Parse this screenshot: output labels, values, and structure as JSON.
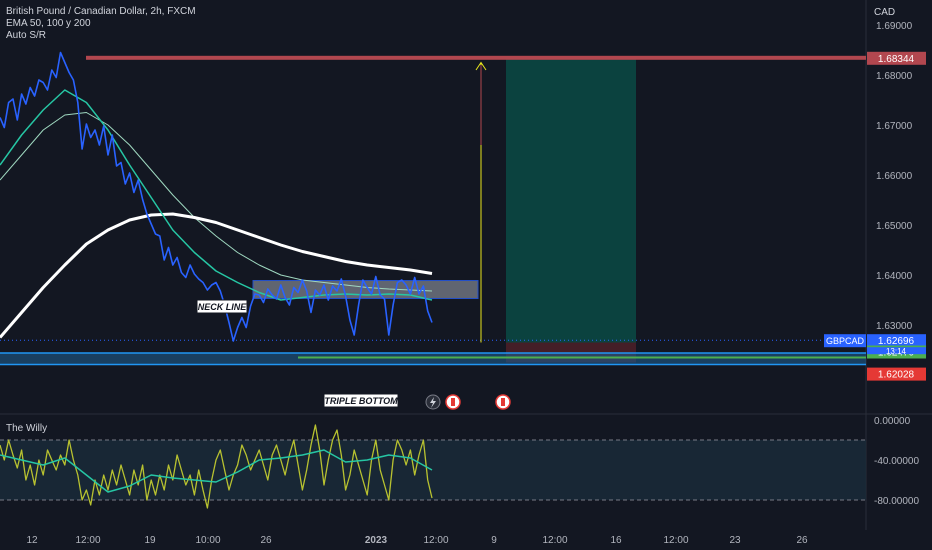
{
  "legend": {
    "title": "British Pound / Canadian Dollar, 2h, FXCM",
    "indicator1": "EMA 50, 100 y 200",
    "indicator2": "Auto S/R"
  },
  "currency": "CAD",
  "oscillator": {
    "title": "The Willy"
  },
  "labels": {
    "neck_line": "NECK LINE",
    "triple_bottom": "TRIPLE BOTTOM",
    "symbol": "GBPCAD",
    "countdown": "13:14"
  },
  "colors": {
    "background": "#131722",
    "price": "#2962ff",
    "ema50": "#26c6a4",
    "ema100": "#9fd8c0",
    "ema200": "#ffffff",
    "resistance": "#b2474f",
    "support": "#2196f3",
    "target_zone": "#0a4a44",
    "stop_zone": "#4a1f28",
    "oscillator": "#b8c230",
    "oscillator_avg": "#26c6a4",
    "arrow": "#e8e61c"
  },
  "chart_data": {
    "type": "line",
    "price_axis": {
      "ticks": [
        "1.69000",
        "1.68000",
        "1.67000",
        "1.66000",
        "1.65000",
        "1.64000",
        "1.63000"
      ],
      "ylim": [
        1.617,
        1.695
      ]
    },
    "time_axis": {
      "ticks": [
        "12",
        "12:00",
        "19",
        "10:00",
        "26",
        "2023",
        "12:00",
        "9",
        "12:00",
        "16",
        "12:00",
        "23",
        "26"
      ]
    },
    "price_badges": [
      {
        "label": "1.68344",
        "value": 1.68344,
        "color": "#b2474f"
      },
      {
        "label": "1.62696",
        "value": 1.62696,
        "color": "#2962ff"
      },
      {
        "label": "1.62470",
        "value": 1.6247,
        "color": "#4caf50"
      },
      {
        "label": "1.62028",
        "value": 1.62028,
        "color": "#e53935"
      }
    ],
    "levels": {
      "resistance": 1.68344,
      "neck_line": [
        1.6365,
        1.6385
      ],
      "support_zone": [
        1.6225,
        1.6242
      ]
    },
    "series": [
      {
        "name": "GBPCAD",
        "x": [
          0,
          2,
          4,
          6,
          8,
          10,
          12,
          14,
          16,
          18,
          20,
          22,
          24,
          26,
          28,
          30,
          32,
          34,
          36,
          38,
          40,
          42,
          44,
          46,
          48,
          50,
          52,
          54,
          56,
          58,
          60,
          62,
          64,
          66,
          68,
          70,
          72,
          74,
          76,
          78,
          80,
          82,
          84,
          86,
          88,
          90,
          92,
          94,
          96,
          98,
          100,
          102,
          104,
          106,
          108,
          110,
          112,
          114,
          116,
          118,
          120,
          122,
          124,
          126,
          128,
          130,
          132,
          134,
          136,
          138,
          140,
          142,
          144,
          146,
          148,
          150,
          152,
          154,
          156,
          158,
          160,
          162,
          164,
          166,
          168,
          170,
          172,
          174,
          176,
          178,
          180,
          182,
          184,
          186,
          188,
          190,
          192,
          194,
          196,
          198,
          200
        ],
        "values": [
          1.6715,
          1.6695,
          1.6745,
          1.6752,
          1.671,
          1.6762,
          1.6742,
          1.6775,
          1.6758,
          1.679,
          1.6785,
          1.677,
          1.681,
          1.6795,
          1.6845,
          1.6825,
          1.6805,
          1.679,
          1.6745,
          1.6652,
          1.6702,
          1.6675,
          1.669,
          1.666,
          1.6698,
          1.664,
          1.668,
          1.6618,
          1.6625,
          1.6582,
          1.6604,
          1.6565,
          1.659,
          1.6551,
          1.6522,
          1.6502,
          1.6482,
          1.6478,
          1.643,
          1.6455,
          1.642,
          1.6435,
          1.6405,
          1.6395,
          1.642,
          1.6402,
          1.6392,
          1.6385,
          1.637,
          1.638,
          1.6385,
          1.6368,
          1.634,
          1.6305,
          1.6268,
          1.6295,
          1.6315,
          1.6295,
          1.6338,
          1.6362,
          1.636,
          1.6345,
          1.6372,
          1.636,
          1.6352,
          1.638,
          1.6355,
          1.634,
          1.6375,
          1.6365,
          1.639,
          1.6368,
          1.6325,
          1.637,
          1.636,
          1.638,
          1.635,
          1.6378,
          1.6368,
          1.6392,
          1.6358,
          1.631,
          1.628,
          1.634,
          1.639,
          1.6375,
          1.6362,
          1.6397,
          1.636,
          1.6352,
          1.628,
          1.634,
          1.6385,
          1.639,
          1.638,
          1.6362,
          1.6395,
          1.6362,
          1.6378,
          1.6328,
          1.6305
        ]
      },
      {
        "name": "EMA 50",
        "x": [
          0,
          10,
          20,
          30,
          40,
          50,
          60,
          70,
          80,
          90,
          100,
          110,
          120,
          130,
          140,
          150,
          160,
          170,
          180,
          190,
          200
        ],
        "values": [
          1.662,
          1.668,
          1.673,
          1.677,
          1.6745,
          1.669,
          1.662,
          1.6555,
          1.649,
          1.6445,
          1.6408,
          1.6385,
          1.6365,
          1.635,
          1.6355,
          1.636,
          1.6362,
          1.636,
          1.6362,
          1.636,
          1.635
        ]
      },
      {
        "name": "EMA 100",
        "x": [
          0,
          10,
          20,
          30,
          40,
          50,
          60,
          70,
          80,
          90,
          100,
          110,
          120,
          130,
          140,
          150,
          160,
          170,
          180,
          190,
          200
        ],
        "values": [
          1.659,
          1.664,
          1.669,
          1.672,
          1.6725,
          1.67,
          1.666,
          1.661,
          1.656,
          1.6515,
          1.6478,
          1.6445,
          1.642,
          1.64,
          1.639,
          1.6385,
          1.638,
          1.6375,
          1.6372,
          1.637,
          1.6368
        ]
      },
      {
        "name": "EMA 200",
        "x": [
          0,
          10,
          20,
          30,
          40,
          50,
          60,
          70,
          80,
          90,
          100,
          110,
          120,
          130,
          140,
          150,
          160,
          170,
          180,
          190,
          200
        ],
        "values": [
          1.6275,
          1.6325,
          1.6375,
          1.642,
          1.6462,
          1.649,
          1.651,
          1.652,
          1.6522,
          1.6515,
          1.6505,
          1.649,
          1.6475,
          1.646,
          1.6447,
          1.6437,
          1.6427,
          1.642,
          1.6415,
          1.641,
          1.6403
        ]
      }
    ],
    "oscillator": {
      "title": "The Willy",
      "ticks": [
        "0.00000",
        "-40.00000",
        "-80.00000"
      ],
      "ylim": [
        -100,
        6
      ],
      "bands": [
        -20,
        -80
      ],
      "series": [
        {
          "name": "The Willy",
          "x": [
            0,
            2,
            4,
            6,
            8,
            10,
            12,
            14,
            16,
            18,
            20,
            22,
            24,
            26,
            28,
            30,
            32,
            34,
            36,
            38,
            40,
            42,
            44,
            46,
            48,
            50,
            52,
            54,
            56,
            58,
            60,
            62,
            64,
            66,
            68,
            70,
            72,
            74,
            76,
            78,
            80,
            82,
            84,
            86,
            88,
            90,
            92,
            94,
            96,
            98,
            100,
            102,
            104,
            106,
            108,
            110,
            112,
            114,
            116,
            118,
            120,
            122,
            124,
            126,
            128,
            130,
            132,
            134,
            136,
            138,
            140,
            142,
            144,
            146,
            148,
            150,
            152,
            154,
            156,
            158,
            160,
            162,
            164,
            166,
            168,
            170,
            172,
            174,
            176,
            178,
            180,
            182,
            184,
            186,
            188,
            190,
            192,
            194,
            196,
            198,
            200
          ],
          "values": [
            -25,
            -40,
            -20,
            -35,
            -48,
            -30,
            -60,
            -45,
            -65,
            -40,
            -55,
            -30,
            -40,
            -50,
            -35,
            -45,
            -20,
            -40,
            -55,
            -80,
            -70,
            -85,
            -60,
            -75,
            -55,
            -70,
            -50,
            -65,
            -45,
            -60,
            -75,
            -50,
            -65,
            -45,
            -80,
            -60,
            -75,
            -55,
            -70,
            -45,
            -60,
            -35,
            -50,
            -65,
            -55,
            -75,
            -50,
            -70,
            -88,
            -60,
            -40,
            -30,
            -50,
            -70,
            -55,
            -45,
            -25,
            -35,
            -50,
            -40,
            -30,
            -45,
            -60,
            -35,
            -25,
            -40,
            -55,
            -35,
            -20,
            -45,
            -70,
            -50,
            -25,
            -5,
            -30,
            -65,
            -40,
            -20,
            -10,
            -35,
            -70,
            -55,
            -30,
            -45,
            -60,
            -75,
            -40,
            -20,
            -50,
            -65,
            -80,
            -40,
            -20,
            -30,
            -45,
            -30,
            -55,
            -35,
            -20,
            -60,
            -78
          ]
        },
        {
          "name": "Average",
          "x": [
            0,
            10,
            20,
            30,
            40,
            50,
            60,
            70,
            80,
            90,
            100,
            110,
            120,
            130,
            140,
            150,
            160,
            170,
            180,
            190,
            200
          ],
          "values": [
            -35,
            -40,
            -45,
            -38,
            -55,
            -72,
            -66,
            -55,
            -58,
            -60,
            -62,
            -52,
            -40,
            -38,
            -35,
            -30,
            -42,
            -40,
            -35,
            -38,
            -50
          ]
        }
      ]
    }
  }
}
